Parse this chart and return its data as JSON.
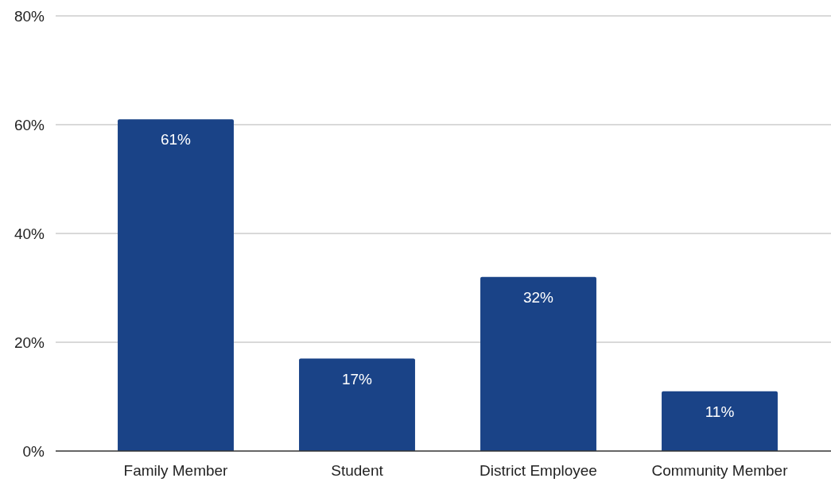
{
  "chart_data": {
    "type": "bar",
    "categories": [
      "Family Member",
      "Student",
      "District Employee",
      "Community Member"
    ],
    "values": [
      61,
      17,
      32,
      11
    ],
    "value_labels": [
      "61%",
      "17%",
      "32%",
      "11%"
    ],
    "color": "#1a4387",
    "ylim": [
      0,
      80
    ],
    "yticks": [
      {
        "value": 0,
        "label": "0%"
      },
      {
        "value": 20,
        "label": "20%"
      },
      {
        "value": 40,
        "label": "40%"
      },
      {
        "value": 60,
        "label": "60%"
      },
      {
        "value": 80,
        "label": "80%"
      }
    ],
    "grid": "y"
  }
}
